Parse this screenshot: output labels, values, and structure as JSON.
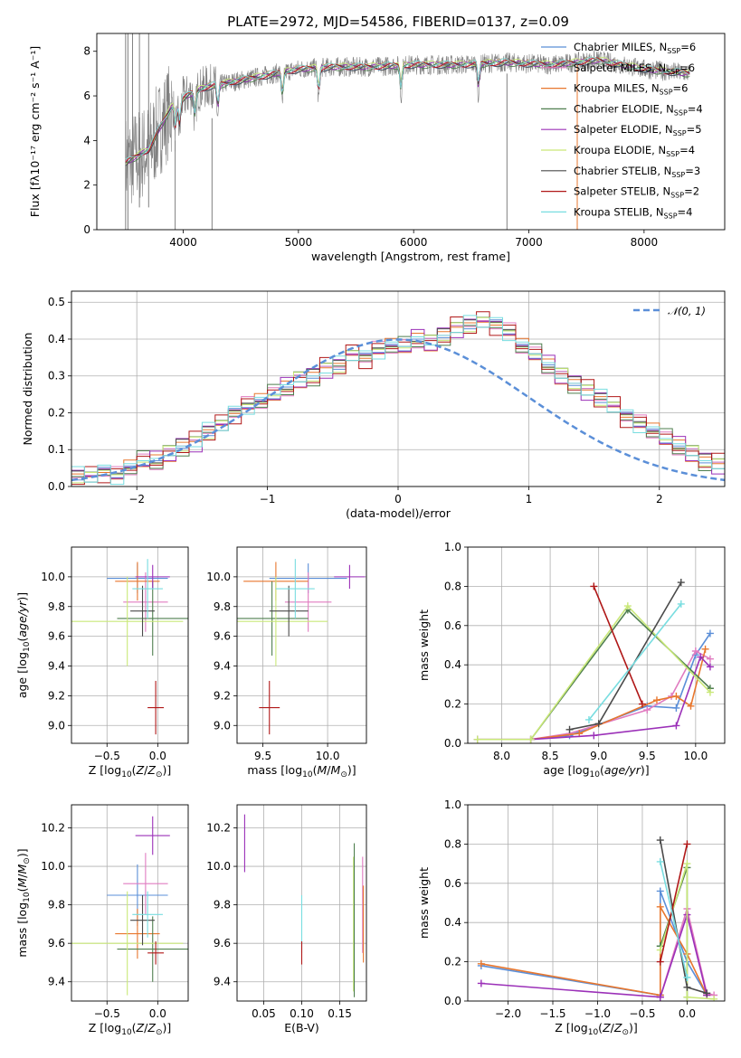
{
  "figure_title": "PLATE=2972, MJD=54586, FIBERID=0137, z=0.09",
  "colors": {
    "Chabrier MILES": "#5b8fd8",
    "Salpeter MILES": "#e07bc0",
    "Kroupa MILES": "#e8772e",
    "Chabrier ELODIE": "#4f7f4f",
    "Salpeter ELODIE": "#9b30b8",
    "Kroupa ELODIE": "#c9e878",
    "Chabrier STELIB": "#4a4a4a",
    "Salpeter STELIB": "#b01818",
    "Kroupa STELIB": "#78dde0",
    "data": "#808080",
    "normal": "#5b8fd8"
  },
  "chart_data": [
    {
      "id": "spectrum",
      "type": "line",
      "title": "PLATE=2972, MJD=54586, FIBERID=0137, z=0.09",
      "xlabel": "wavelength [Angstrom, rest frame]",
      "ylabel": "Flux [fλ10⁻¹⁷ erg cm⁻² s⁻¹ A⁻¹]",
      "xlim": [
        3250,
        8700
      ],
      "ylim": [
        0,
        8.8
      ],
      "xticks": [
        4000,
        5000,
        6000,
        7000,
        8000
      ],
      "yticks": [
        0,
        2,
        4,
        6,
        8
      ],
      "grid": false,
      "legend_position": "top-right",
      "legend": [
        "Chabrier MILES, N_SSP=6",
        "Salpeter MILES, N_SSP=6",
        "Kroupa MILES, N_SSP=6",
        "Chabrier ELODIE, N_SSP=4",
        "Salpeter ELODIE, N_SSP=5",
        "Kroupa ELODIE, N_SSP=4",
        "Chabrier STELIB, N_SSP=3",
        "Salpeter STELIB, N_SSP=2",
        "Kroupa STELIB, N_SSP=4"
      ],
      "model_continuum": {
        "x": [
          3500,
          3700,
          3800,
          3900,
          4000,
          4100,
          4200,
          4400,
          4600,
          4800,
          5000,
          5300,
          5600,
          6000,
          6400,
          6800,
          7200,
          7600,
          8000,
          8400
        ],
        "y": [
          3.0,
          3.6,
          4.6,
          5.5,
          5.9,
          6.2,
          6.4,
          6.6,
          6.8,
          7.0,
          7.2,
          7.3,
          7.3,
          7.4,
          7.4,
          7.5,
          7.4,
          7.6,
          7.2,
          7.0
        ]
      },
      "absorption_features": [
        3934,
        3969,
        4102,
        4300,
        4861,
        5175,
        5890,
        6563
      ]
    },
    {
      "id": "residuals",
      "type": "step",
      "xlabel": "(data-model)/error",
      "ylabel": "Normed distribution",
      "xlim": [
        -2.5,
        2.5
      ],
      "ylim": [
        0,
        0.53
      ],
      "xticks": [
        -2,
        -1,
        0,
        1,
        2
      ],
      "yticks": [
        0.0,
        0.1,
        0.2,
        0.3,
        0.4,
        0.5
      ],
      "grid": true,
      "legend_position": "top-right",
      "reference_curve": "𝒩(0, 1)",
      "bin_width": 0.1,
      "bin_start": -2.5,
      "base_histogram": [
        0.03,
        0.03,
        0.04,
        0.03,
        0.05,
        0.07,
        0.07,
        0.09,
        0.11,
        0.12,
        0.15,
        0.17,
        0.2,
        0.22,
        0.23,
        0.25,
        0.27,
        0.29,
        0.3,
        0.32,
        0.33,
        0.36,
        0.35,
        0.37,
        0.38,
        0.38,
        0.4,
        0.39,
        0.41,
        0.43,
        0.44,
        0.45,
        0.44,
        0.42,
        0.38,
        0.36,
        0.33,
        0.3,
        0.28,
        0.26,
        0.24,
        0.22,
        0.19,
        0.17,
        0.15,
        0.13,
        0.11,
        0.09,
        0.07,
        0.06
      ],
      "series_perturbation": [
        0.0,
        0.012,
        -0.01,
        0.015,
        -0.014,
        0.008,
        -0.006,
        0.018,
        -0.012
      ]
    },
    {
      "id": "age-vs-Z",
      "type": "errorbar",
      "xlabel": "Z [log10(Z/Z⊙)]",
      "ylabel": "age [log10(age/yr)]",
      "xlim": [
        -0.85,
        0.3
      ],
      "ylim": [
        8.88,
        10.2
      ],
      "xticks": [
        -0.5,
        0.0
      ],
      "yticks": [
        9.0,
        9.2,
        9.4,
        9.6,
        9.8,
        10.0
      ],
      "grid": true,
      "points": [
        {
          "series": "Chabrier MILES",
          "x": -0.2,
          "xerr": 0.3,
          "y": 9.99,
          "yerr": 0.1
        },
        {
          "series": "Salpeter MILES",
          "x": -0.12,
          "xerr": 0.22,
          "y": 9.83,
          "yerr": 0.2
        },
        {
          "series": "Kroupa MILES",
          "x": -0.2,
          "xerr": 0.22,
          "y": 9.97,
          "yerr": 0.13
        },
        {
          "series": "Chabrier ELODIE",
          "x": -0.05,
          "xerr": 0.35,
          "y": 9.72,
          "yerr": 0.25
        },
        {
          "series": "Salpeter ELODIE",
          "x": -0.05,
          "xerr": 0.17,
          "y": 10.0,
          "yerr": 0.08
        },
        {
          "series": "Kroupa ELODIE",
          "x": -0.3,
          "xerr": 0.55,
          "y": 9.7,
          "yerr": 0.3
        },
        {
          "series": "Chabrier STELIB",
          "x": -0.15,
          "xerr": 0.12,
          "y": 9.77,
          "yerr": 0.17
        },
        {
          "series": "Salpeter STELIB",
          "x": -0.02,
          "xerr": 0.08,
          "y": 9.12,
          "yerr": 0.18
        },
        {
          "series": "Kroupa STELIB",
          "x": -0.1,
          "xerr": 0.15,
          "y": 9.92,
          "yerr": 0.2
        }
      ]
    },
    {
      "id": "age-vs-mass",
      "type": "errorbar",
      "xlabel": "mass [log10(M/M⊙)]",
      "ylabel": "",
      "xlim": [
        9.3,
        10.3
      ],
      "ylim": [
        8.88,
        10.2
      ],
      "xticks": [
        9.5,
        10.0
      ],
      "yticks": [
        9.0,
        9.2,
        9.4,
        9.6,
        9.8,
        10.0
      ],
      "grid": true,
      "points": [
        {
          "series": "Chabrier MILES",
          "x": 9.85,
          "xerr": 0.3,
          "y": 9.99,
          "yerr": 0.1
        },
        {
          "series": "Salpeter MILES",
          "x": 9.85,
          "xerr": 0.18,
          "y": 9.83,
          "yerr": 0.2
        },
        {
          "series": "Kroupa MILES",
          "x": 9.6,
          "xerr": 0.25,
          "y": 9.97,
          "yerr": 0.13
        },
        {
          "series": "Chabrier ELODIE",
          "x": 9.57,
          "xerr": 0.28,
          "y": 9.72,
          "yerr": 0.25
        },
        {
          "series": "Salpeter ELODIE",
          "x": 10.17,
          "xerr": 0.12,
          "y": 10.0,
          "yerr": 0.08
        },
        {
          "series": "Kroupa ELODIE",
          "x": 9.6,
          "xerr": 0.4,
          "y": 9.7,
          "yerr": 0.3
        },
        {
          "series": "Chabrier STELIB",
          "x": 9.7,
          "xerr": 0.15,
          "y": 9.77,
          "yerr": 0.17
        },
        {
          "series": "Salpeter STELIB",
          "x": 9.55,
          "xerr": 0.08,
          "y": 9.12,
          "yerr": 0.18
        },
        {
          "series": "Kroupa STELIB",
          "x": 9.75,
          "xerr": 0.15,
          "y": 9.92,
          "yerr": 0.2
        }
      ]
    },
    {
      "id": "weight-vs-age",
      "type": "line",
      "xlabel": "age [log10(age/yr)]",
      "ylabel": "mass weight",
      "xlim": [
        7.65,
        10.3
      ],
      "ylim": [
        0.0,
        1.0
      ],
      "xticks": [
        8.0,
        8.5,
        9.0,
        9.5,
        10.0
      ],
      "yticks": [
        0.0,
        0.2,
        0.4,
        0.6,
        0.8,
        1.0
      ],
      "grid": true,
      "series": [
        {
          "name": "Chabrier MILES",
          "x": [
            8.3,
            8.7,
            9.5,
            9.8,
            10.0,
            10.15
          ],
          "y": [
            0.02,
            0.04,
            0.19,
            0.18,
            0.45,
            0.56
          ]
        },
        {
          "name": "Salpeter MILES",
          "x": [
            8.3,
            8.7,
            9.5,
            9.75,
            10.0,
            10.15
          ],
          "y": [
            0.02,
            0.05,
            0.17,
            0.24,
            0.47,
            0.43
          ]
        },
        {
          "name": "Kroupa MILES",
          "x": [
            8.3,
            8.8,
            9.6,
            9.8,
            9.95,
            10.1
          ],
          "y": [
            0.02,
            0.05,
            0.22,
            0.24,
            0.19,
            0.48
          ]
        },
        {
          "name": "Chabrier ELODIE",
          "x": [
            8.3,
            9.3,
            10.15
          ],
          "y": [
            0.02,
            0.68,
            0.28
          ]
        },
        {
          "name": "Salpeter ELODIE",
          "x": [
            7.75,
            8.3,
            8.95,
            9.8,
            10.05,
            10.15
          ],
          "y": [
            0.02,
            0.02,
            0.04,
            0.09,
            0.44,
            0.39
          ]
        },
        {
          "name": "Kroupa ELODIE",
          "x": [
            7.75,
            8.3,
            9.3,
            10.15
          ],
          "y": [
            0.02,
            0.02,
            0.7,
            0.26
          ]
        },
        {
          "name": "Chabrier STELIB",
          "x": [
            8.7,
            9.0,
            9.85
          ],
          "y": [
            0.07,
            0.1,
            0.82
          ]
        },
        {
          "name": "Salpeter STELIB",
          "x": [
            8.95,
            9.45
          ],
          "y": [
            0.8,
            0.2
          ]
        },
        {
          "name": "Kroupa STELIB",
          "x": [
            8.9,
            9.85
          ],
          "y": [
            0.12,
            0.71
          ]
        }
      ]
    },
    {
      "id": "mass-vs-Z",
      "type": "errorbar",
      "xlabel": "Z [log10(Z/Z⊙)]",
      "ylabel": "mass [log10(M/M⊙)]",
      "xlim": [
        -0.85,
        0.3
      ],
      "ylim": [
        9.3,
        10.32
      ],
      "xticks": [
        -0.5,
        0.0
      ],
      "yticks": [
        9.4,
        9.6,
        9.8,
        10.0,
        10.2
      ],
      "grid": true,
      "points": [
        {
          "series": "Chabrier MILES",
          "x": -0.2,
          "xerr": 0.3,
          "y": 9.85,
          "yerr": 0.16
        },
        {
          "series": "Salpeter MILES",
          "x": -0.12,
          "xerr": 0.22,
          "y": 9.91,
          "yerr": 0.16
        },
        {
          "series": "Kroupa MILES",
          "x": -0.2,
          "xerr": 0.22,
          "y": 9.65,
          "yerr": 0.13
        },
        {
          "series": "Chabrier ELODIE",
          "x": -0.05,
          "xerr": 0.35,
          "y": 9.57,
          "yerr": 0.17
        },
        {
          "series": "Salpeter ELODIE",
          "x": -0.05,
          "xerr": 0.17,
          "y": 10.16,
          "yerr": 0.1
        },
        {
          "series": "Kroupa ELODIE",
          "x": -0.3,
          "xerr": 0.55,
          "y": 9.6,
          "yerr": 0.27
        },
        {
          "series": "Chabrier STELIB",
          "x": -0.15,
          "xerr": 0.12,
          "y": 9.72,
          "yerr": 0.13
        },
        {
          "series": "Salpeter STELIB",
          "x": -0.02,
          "xerr": 0.08,
          "y": 9.55,
          "yerr": 0.06
        },
        {
          "series": "Kroupa STELIB",
          "x": -0.1,
          "xerr": 0.15,
          "y": 9.75,
          "yerr": 0.12
        }
      ]
    },
    {
      "id": "mass-vs-EBV",
      "type": "errorbar",
      "xlabel": "E(B-V)",
      "ylabel": "",
      "xlim": [
        0.015,
        0.185
      ],
      "ylim": [
        9.3,
        10.32
      ],
      "xticks": [
        0.05,
        0.1,
        0.15
      ],
      "yticks": [
        9.4,
        9.6,
        9.8,
        10.0,
        10.2
      ],
      "grid": true,
      "points": [
        {
          "series": "Salpeter ELODIE",
          "x": 0.025,
          "xerr": 0,
          "y": 10.12,
          "yerr": 0.15
        },
        {
          "series": "Kroupa STELIB",
          "x": 0.1,
          "xerr": 0,
          "y": 9.7,
          "yerr": 0.15
        },
        {
          "series": "Salpeter STELIB",
          "x": 0.1,
          "xerr": 0,
          "y": 9.55,
          "yerr": 0.06
        },
        {
          "series": "Kroupa ELODIE",
          "x": 0.168,
          "xerr": 0,
          "y": 9.7,
          "yerr": 0.35
        },
        {
          "series": "Chabrier ELODIE",
          "x": 0.169,
          "xerr": 0,
          "y": 9.72,
          "yerr": 0.4
        },
        {
          "series": "Salpeter MILES",
          "x": 0.18,
          "xerr": 0,
          "y": 9.8,
          "yerr": 0.25
        },
        {
          "series": "Kroupa MILES",
          "x": 0.181,
          "xerr": 0,
          "y": 9.7,
          "yerr": 0.2
        }
      ]
    },
    {
      "id": "weight-vs-Z",
      "type": "line",
      "xlabel": "Z [log10(Z/Z⊙)]",
      "ylabel": "mass weight",
      "xlim": [
        -2.45,
        0.42
      ],
      "ylim": [
        0.0,
        1.0
      ],
      "xticks": [
        -2.0,
        -1.5,
        -1.0,
        -0.5,
        0.0
      ],
      "yticks": [
        0.0,
        0.2,
        0.4,
        0.6,
        0.8,
        1.0
      ],
      "grid": true,
      "series": [
        {
          "name": "Chabrier MILES",
          "x": [
            -2.3,
            -0.3,
            -0.3,
            0.0,
            0.22
          ],
          "y": [
            0.18,
            0.03,
            0.56,
            0.2,
            0.03
          ]
        },
        {
          "name": "Salpeter MILES",
          "x": [
            -0.3,
            0.0,
            0.22,
            0.3
          ],
          "y": [
            0.02,
            0.47,
            0.04,
            0.03
          ]
        },
        {
          "name": "Kroupa MILES",
          "x": [
            -2.3,
            -0.3,
            -0.3,
            0.0,
            0.22
          ],
          "y": [
            0.19,
            0.03,
            0.48,
            0.24,
            0.03
          ]
        },
        {
          "name": "Chabrier ELODIE",
          "x": [
            -0.3,
            0.0,
            0.0
          ],
          "y": [
            0.28,
            0.68,
            0.02
          ]
        },
        {
          "name": "Salpeter ELODIE",
          "x": [
            -2.3,
            -0.3,
            -0.3,
            0.0,
            0.22
          ],
          "y": [
            0.09,
            0.02,
            0.02,
            0.44,
            0.03
          ]
        },
        {
          "name": "Kroupa ELODIE",
          "x": [
            -0.3,
            0.0,
            0.0,
            0.3
          ],
          "y": [
            0.26,
            0.7,
            0.02,
            0.01
          ]
        },
        {
          "name": "Chabrier STELIB",
          "x": [
            -0.3,
            0.0,
            0.22
          ],
          "y": [
            0.82,
            0.07,
            0.04
          ]
        },
        {
          "name": "Salpeter STELIB",
          "x": [
            -0.3,
            0.0
          ],
          "y": [
            0.2,
            0.8
          ]
        },
        {
          "name": "Kroupa STELIB",
          "x": [
            -0.3,
            0.0,
            0.0
          ],
          "y": [
            0.71,
            0.12,
            0.12
          ]
        }
      ]
    }
  ]
}
